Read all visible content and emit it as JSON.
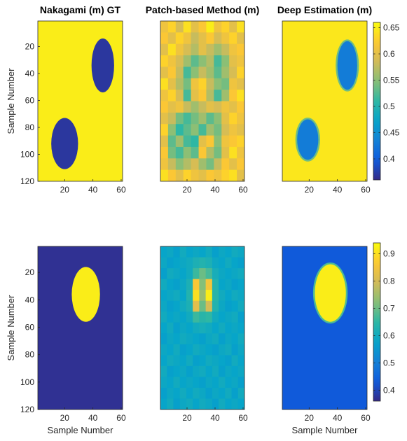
{
  "figure": {
    "background": "#ffffff"
  },
  "colormap": {
    "name": "parula",
    "stops": [
      "#352a87",
      "#0f5cdd",
      "#1481d6",
      "#06a4ca",
      "#2eb7a4",
      "#87bf77",
      "#d1bb59",
      "#fec832",
      "#f9fb0e"
    ]
  },
  "chart_data": [
    {
      "type": "heatmap",
      "id": "r1c1",
      "title": "Nakagami (m) GT",
      "xlabel": "",
      "ylabel": "Sample Number",
      "xticks": [
        "20",
        "40",
        "60"
      ],
      "yticks": [
        "20",
        "40",
        "60",
        "80",
        "100",
        "120"
      ],
      "xlim": [
        1,
        61
      ],
      "ylim": [
        1,
        120
      ],
      "clim": [
        0.36,
        0.66
      ],
      "background": 0.65,
      "inclusions": [
        {
          "cx": 47,
          "cy": 34,
          "rx": 8,
          "ry": 20,
          "value": 0.37
        },
        {
          "cx": 20,
          "cy": 92,
          "rx": 9.5,
          "ry": 19,
          "value": 0.37
        }
      ]
    },
    {
      "type": "heatmap",
      "id": "r1c2",
      "title": "Patch-based Method (m)",
      "xlabel": "",
      "ylabel": "",
      "xticks": [
        "20",
        "40",
        "60"
      ],
      "yticks": [],
      "xlim": [
        1,
        61
      ],
      "ylim": [
        1,
        120
      ],
      "clim": [
        0.36,
        0.66
      ],
      "grid_values": [
        [
          0.61,
          0.63,
          0.59,
          0.64,
          0.6,
          0.62,
          0.65,
          0.61,
          0.63,
          0.6,
          0.64
        ],
        [
          0.62,
          0.6,
          0.63,
          0.61,
          0.58,
          0.6,
          0.62,
          0.59,
          0.61,
          0.63,
          0.6
        ],
        [
          0.6,
          0.64,
          0.61,
          0.59,
          0.57,
          0.6,
          0.58,
          0.56,
          0.58,
          0.61,
          0.62
        ],
        [
          0.63,
          0.61,
          0.59,
          0.56,
          0.53,
          0.55,
          0.57,
          0.52,
          0.55,
          0.6,
          0.61
        ],
        [
          0.6,
          0.62,
          0.58,
          0.52,
          0.55,
          0.58,
          0.56,
          0.53,
          0.56,
          0.59,
          0.63
        ],
        [
          0.64,
          0.6,
          0.57,
          0.54,
          0.61,
          0.63,
          0.58,
          0.55,
          0.54,
          0.61,
          0.6
        ],
        [
          0.61,
          0.63,
          0.59,
          0.52,
          0.6,
          0.62,
          0.57,
          0.52,
          0.56,
          0.62,
          0.64
        ],
        [
          0.62,
          0.6,
          0.61,
          0.58,
          0.56,
          0.58,
          0.6,
          0.59,
          0.61,
          0.6,
          0.62
        ],
        [
          0.6,
          0.58,
          0.54,
          0.52,
          0.54,
          0.56,
          0.53,
          0.55,
          0.6,
          0.63,
          0.61
        ],
        [
          0.63,
          0.55,
          0.51,
          0.53,
          0.55,
          0.52,
          0.56,
          0.54,
          0.59,
          0.61,
          0.6
        ],
        [
          0.6,
          0.53,
          0.56,
          0.52,
          0.51,
          0.6,
          0.62,
          0.55,
          0.61,
          0.62,
          0.63
        ],
        [
          0.62,
          0.54,
          0.52,
          0.55,
          0.53,
          0.62,
          0.57,
          0.54,
          0.6,
          0.64,
          0.61
        ],
        [
          0.61,
          0.58,
          0.55,
          0.57,
          0.59,
          0.56,
          0.54,
          0.58,
          0.62,
          0.6,
          0.62
        ],
        [
          0.64,
          0.62,
          0.6,
          0.63,
          0.61,
          0.6,
          0.62,
          0.61,
          0.63,
          0.64,
          0.6
        ]
      ]
    },
    {
      "type": "heatmap",
      "id": "r1c3",
      "title": "Deep Estimation (m)",
      "xlabel": "",
      "ylabel": "",
      "xticks": [
        "20",
        "40",
        "60"
      ],
      "yticks": [],
      "xlim": [
        1,
        61
      ],
      "ylim": [
        1,
        120
      ],
      "clim": [
        0.36,
        0.66
      ],
      "background": 0.645,
      "inclusions": [
        {
          "cx": 47,
          "cy": 34,
          "rx": 7,
          "ry": 18,
          "value": 0.43
        },
        {
          "cx": 19,
          "cy": 89,
          "rx": 7.5,
          "ry": 15,
          "value": 0.43
        }
      ],
      "colorbar": {
        "ticks": [
          "0.65",
          "0.6",
          "0.55",
          "0.5",
          "0.45",
          "0.4"
        ],
        "tick_values": [
          0.65,
          0.6,
          0.55,
          0.5,
          0.45,
          0.4
        ]
      }
    },
    {
      "type": "heatmap",
      "id": "r2c1",
      "title": "",
      "xlabel": "Sample Number",
      "ylabel": "Sample Number",
      "xticks": [
        "20",
        "40",
        "60"
      ],
      "yticks": [
        "20",
        "40",
        "60",
        "80",
        "100",
        "120"
      ],
      "xlim": [
        1,
        61
      ],
      "ylim": [
        1,
        120
      ],
      "clim": [
        0.36,
        0.94
      ],
      "background": 0.37,
      "inclusions": [
        {
          "cx": 35,
          "cy": 36,
          "rx": 10,
          "ry": 20,
          "value": 0.92
        }
      ]
    },
    {
      "type": "heatmap",
      "id": "r2c2",
      "title": "",
      "xlabel": "",
      "ylabel": "",
      "xticks": [
        "20",
        "40",
        "60"
      ],
      "yticks": [],
      "xlim": [
        1,
        61
      ],
      "ylim": [
        1,
        120
      ],
      "clim": [
        0.36,
        0.94
      ],
      "grid_values": [
        [
          0.58,
          0.59,
          0.57,
          0.6,
          0.58,
          0.59,
          0.58,
          0.6,
          0.57,
          0.59,
          0.58,
          0.6,
          0.59
        ],
        [
          0.59,
          0.57,
          0.58,
          0.59,
          0.6,
          0.62,
          0.63,
          0.62,
          0.59,
          0.58,
          0.6,
          0.58,
          0.57
        ],
        [
          0.57,
          0.6,
          0.59,
          0.58,
          0.6,
          0.66,
          0.7,
          0.67,
          0.61,
          0.59,
          0.58,
          0.59,
          0.6
        ],
        [
          0.6,
          0.58,
          0.57,
          0.59,
          0.62,
          0.86,
          0.72,
          0.85,
          0.63,
          0.58,
          0.59,
          0.57,
          0.58
        ],
        [
          0.58,
          0.59,
          0.6,
          0.58,
          0.63,
          0.9,
          0.74,
          0.92,
          0.64,
          0.6,
          0.58,
          0.6,
          0.59
        ],
        [
          0.59,
          0.57,
          0.58,
          0.6,
          0.62,
          0.82,
          0.7,
          0.8,
          0.63,
          0.59,
          0.57,
          0.58,
          0.6
        ],
        [
          0.6,
          0.58,
          0.59,
          0.58,
          0.6,
          0.66,
          0.64,
          0.65,
          0.6,
          0.58,
          0.59,
          0.6,
          0.57
        ],
        [
          0.58,
          0.6,
          0.57,
          0.59,
          0.58,
          0.6,
          0.61,
          0.6,
          0.58,
          0.6,
          0.58,
          0.59,
          0.58
        ],
        [
          0.57,
          0.59,
          0.58,
          0.6,
          0.59,
          0.58,
          0.57,
          0.59,
          0.6,
          0.57,
          0.59,
          0.58,
          0.6
        ],
        [
          0.59,
          0.58,
          0.6,
          0.57,
          0.58,
          0.6,
          0.59,
          0.58,
          0.57,
          0.59,
          0.6,
          0.57,
          0.59
        ],
        [
          0.58,
          0.6,
          0.59,
          0.58,
          0.6,
          0.57,
          0.58,
          0.6,
          0.59,
          0.58,
          0.57,
          0.6,
          0.58
        ],
        [
          0.6,
          0.57,
          0.58,
          0.59,
          0.57,
          0.59,
          0.6,
          0.58,
          0.6,
          0.57,
          0.59,
          0.58,
          0.59
        ],
        [
          0.59,
          0.58,
          0.6,
          0.58,
          0.59,
          0.58,
          0.57,
          0.59,
          0.58,
          0.6,
          0.58,
          0.59,
          0.57
        ],
        [
          0.57,
          0.59,
          0.58,
          0.6,
          0.58,
          0.6,
          0.59,
          0.57,
          0.59,
          0.58,
          0.6,
          0.57,
          0.6
        ],
        [
          0.58,
          0.6,
          0.57,
          0.59,
          0.6,
          0.58,
          0.6,
          0.59,
          0.57,
          0.6,
          0.58,
          0.59,
          0.58
        ]
      ]
    },
    {
      "type": "heatmap",
      "id": "r2c3",
      "title": "",
      "xlabel": "Sample Number",
      "ylabel": "",
      "xticks": [
        "20",
        "40",
        "60"
      ],
      "yticks": [],
      "xlim": [
        1,
        61
      ],
      "ylim": [
        1,
        120
      ],
      "clim": [
        0.36,
        0.94
      ],
      "background": 0.43,
      "inclusions": [
        {
          "cx": 35,
          "cy": 35,
          "rx": 11,
          "ry": 21,
          "value": 0.92
        }
      ],
      "colorbar": {
        "ticks": [
          "0.9",
          "0.8",
          "0.7",
          "0.6",
          "0.5",
          "0.4"
        ],
        "tick_values": [
          0.9,
          0.8,
          0.7,
          0.6,
          0.5,
          0.4
        ]
      }
    }
  ]
}
